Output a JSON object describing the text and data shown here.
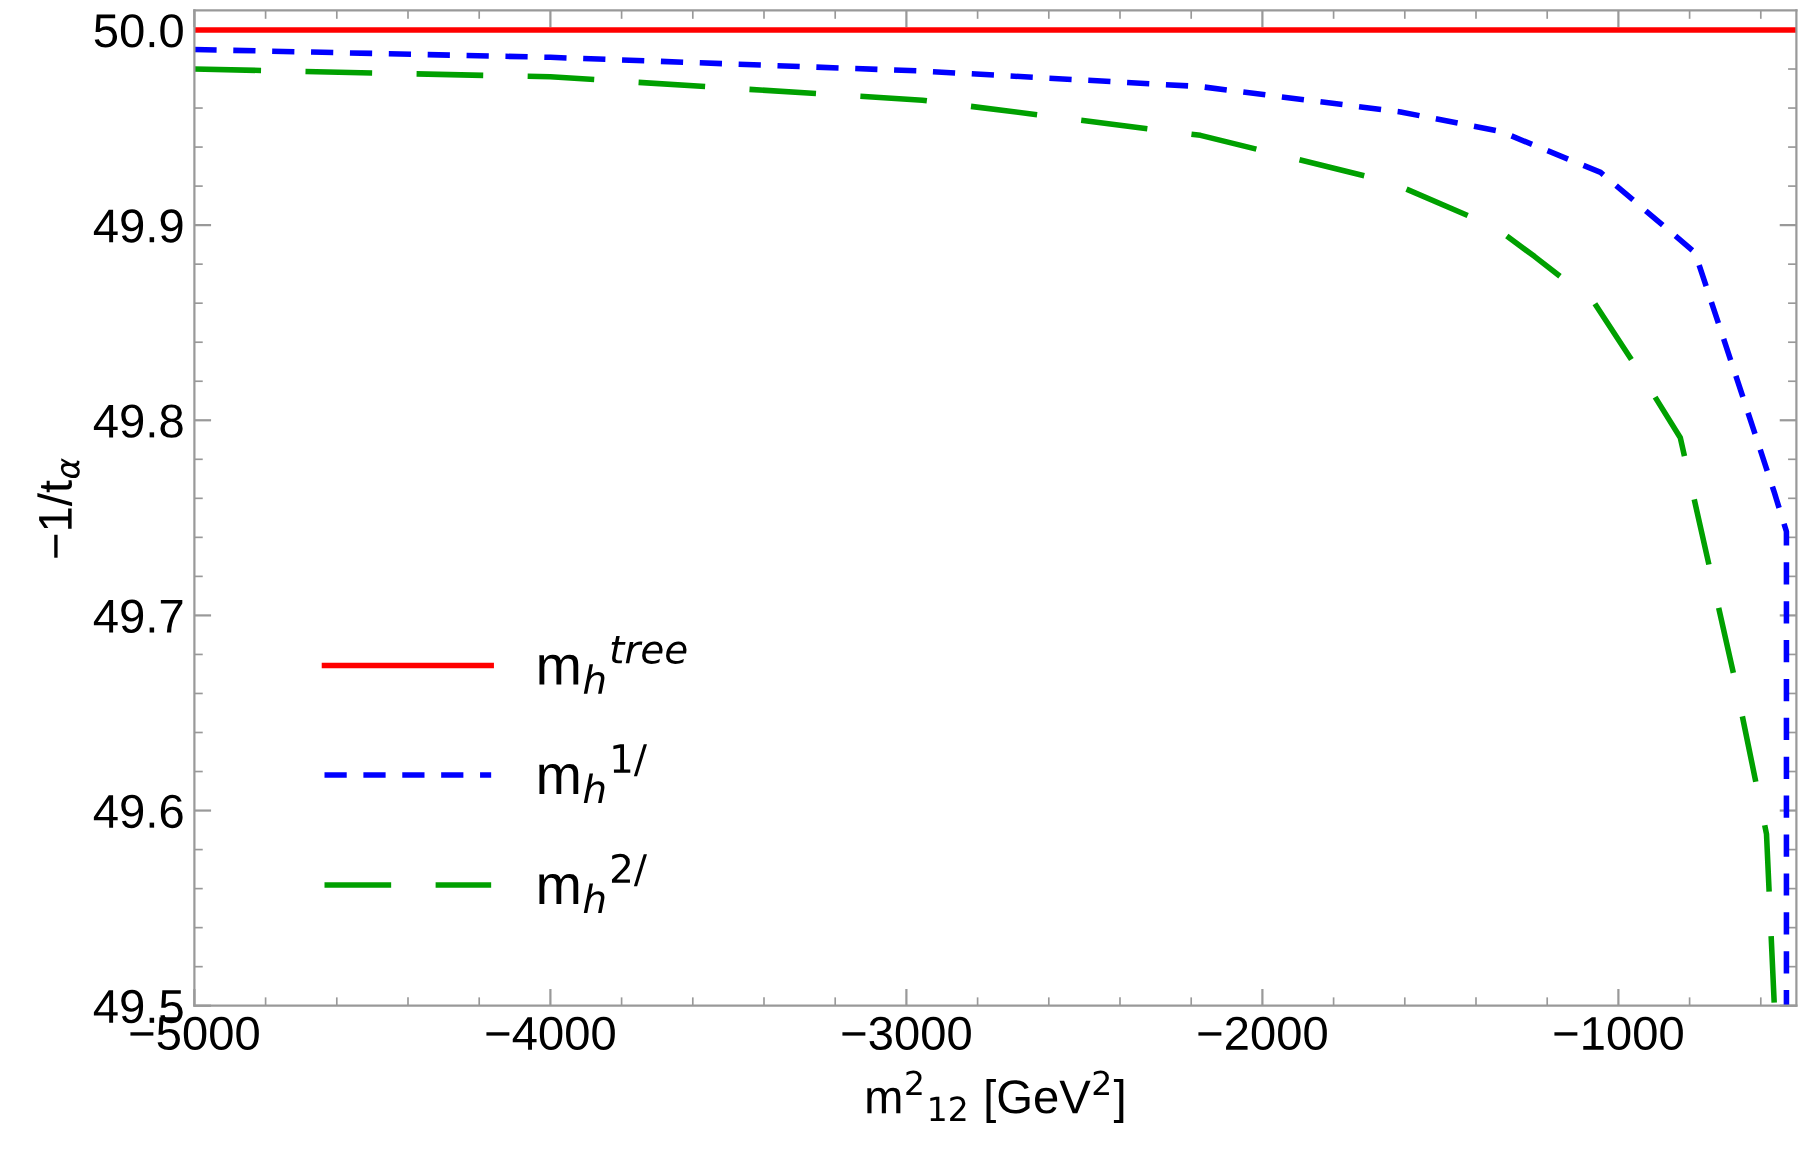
{
  "chart_data": {
    "type": "line",
    "xlabel": "m$^{2}$$_{12}$ [GeV$^{2}$]",
    "ylabel": "−1/t$_{α}$",
    "xlim": [
      -5000,
      -500
    ],
    "ylim": [
      49.5,
      50.01
    ],
    "xticks": [
      {
        "value": -5000,
        "label": "−5000"
      },
      {
        "value": -4000,
        "label": "−4000"
      },
      {
        "value": -3000,
        "label": "−3000"
      },
      {
        "value": -2000,
        "label": "−2000"
      },
      {
        "value": -1000,
        "label": "−1000"
      }
    ],
    "yticks": [
      49.5,
      49.6,
      49.7,
      49.8,
      49.9,
      {
        "value": 50.0,
        "label": "50.0"
      }
    ],
    "grid": false,
    "legend": "bottom left",
    "marker": "none",
    "series": [
      {
        "name": "m$_{h}$$^{tree}$",
        "color": "#ff0000",
        "line_style": "solid",
        "x": [
          -5000,
          -500
        ],
        "values": [
          50.0,
          50.0
        ]
      },
      {
        "name": "m$_{h}$$^{1/}$",
        "color": "#0000ff",
        "line_style": "dashed",
        "x": [
          -5000,
          -4000,
          -2961,
          -2174,
          -1612,
          -1331,
          -1050,
          -785,
          -674,
          -562,
          -528,
          -528
        ],
        "values": [
          49.99,
          49.986,
          49.979,
          49.971,
          49.958,
          49.948,
          49.927,
          49.886,
          49.825,
          49.763,
          49.743,
          49.5
        ]
      },
      {
        "name": "m$_{h}$$^{2/}$",
        "color": "#00a000",
        "line_style": "dashed",
        "x": [
          -5000,
          -4000,
          -2955,
          -2174,
          -1640,
          -1348,
          -1236,
          -1067,
          -938,
          -826,
          -674,
          -584,
          -562
        ],
        "values": [
          49.98,
          49.976,
          49.964,
          49.946,
          49.922,
          49.899,
          49.884,
          49.86,
          49.824,
          49.791,
          49.668,
          49.588,
          49.5
        ]
      }
    ]
  }
}
